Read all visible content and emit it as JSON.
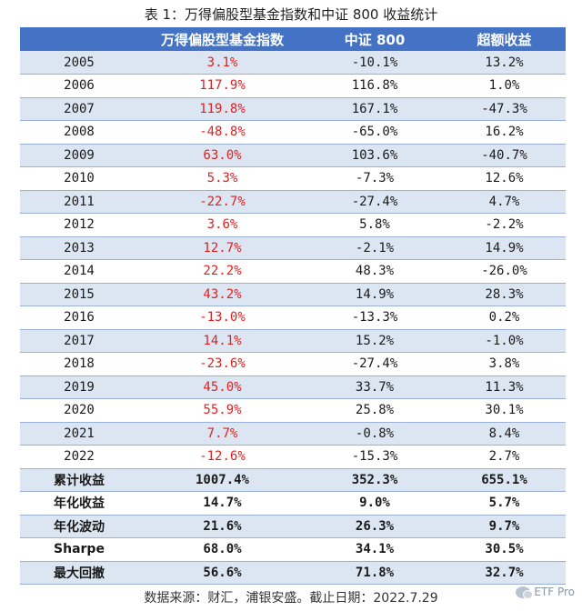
{
  "caption": "表 1：万得偏股型基金指数和中证 800 收益统计",
  "table": {
    "headers": [
      "",
      "万得偏股型基金指数",
      "中证 800",
      "超额收益"
    ],
    "year_rows": [
      {
        "year": "2005",
        "fund": "3.1%",
        "csi800": "-10.1%",
        "excess": "13.2%"
      },
      {
        "year": "2006",
        "fund": "117.9%",
        "csi800": "116.8%",
        "excess": "1.0%"
      },
      {
        "year": "2007",
        "fund": "119.8%",
        "csi800": "167.1%",
        "excess": "-47.3%"
      },
      {
        "year": "2008",
        "fund": "-48.8%",
        "csi800": "-65.0%",
        "excess": "16.2%"
      },
      {
        "year": "2009",
        "fund": "63.0%",
        "csi800": "103.6%",
        "excess": "-40.7%"
      },
      {
        "year": "2010",
        "fund": "5.3%",
        "csi800": "-7.3%",
        "excess": "12.6%"
      },
      {
        "year": "2011",
        "fund": "-22.7%",
        "csi800": "-27.4%",
        "excess": "4.7%"
      },
      {
        "year": "2012",
        "fund": "3.6%",
        "csi800": "5.8%",
        "excess": "-2.2%"
      },
      {
        "year": "2013",
        "fund": "12.7%",
        "csi800": "-2.1%",
        "excess": "14.9%"
      },
      {
        "year": "2014",
        "fund": "22.2%",
        "csi800": "48.3%",
        "excess": "-26.0%"
      },
      {
        "year": "2015",
        "fund": "43.2%",
        "csi800": "14.9%",
        "excess": "28.3%"
      },
      {
        "year": "2016",
        "fund": "-13.0%",
        "csi800": "-13.3%",
        "excess": "0.2%"
      },
      {
        "year": "2017",
        "fund": "14.1%",
        "csi800": "15.2%",
        "excess": "-1.0%"
      },
      {
        "year": "2018",
        "fund": "-23.6%",
        "csi800": "-27.4%",
        "excess": "3.8%"
      },
      {
        "year": "2019",
        "fund": "45.0%",
        "csi800": "33.7%",
        "excess": "11.3%"
      },
      {
        "year": "2020",
        "fund": "55.9%",
        "csi800": "25.8%",
        "excess": "30.1%"
      },
      {
        "year": "2021",
        "fund": "7.7%",
        "csi800": "-0.8%",
        "excess": "8.4%"
      },
      {
        "year": "2022",
        "fund": "-12.6%",
        "csi800": "-15.3%",
        "excess": "2.7%"
      }
    ],
    "summary_rows": [
      {
        "label": "累计收益",
        "fund": "1007.4%",
        "csi800": "352.3%",
        "excess": "655.1%"
      },
      {
        "label": "年化收益",
        "fund": "14.7%",
        "csi800": "9.0%",
        "excess": "5.7%"
      },
      {
        "label": "年化波动",
        "fund": "21.6%",
        "csi800": "26.3%",
        "excess": "9.7%"
      },
      {
        "label": "Sharpe",
        "fund": "68.0%",
        "csi800": "34.1%",
        "excess": "30.5%"
      },
      {
        "label": "最大回撤",
        "fund": "56.6%",
        "csi800": "71.8%",
        "excess": "32.7%"
      }
    ]
  },
  "colors": {
    "header_bg": "#4472c4",
    "band_bg": "#dce6f2",
    "fund_value_color": "#e02020"
  },
  "source_note": "数据来源：财汇，浦银安盛。截止日期：2022.7.29",
  "watermark": {
    "icon": "wechat-icon",
    "text": "ETF Pro"
  }
}
